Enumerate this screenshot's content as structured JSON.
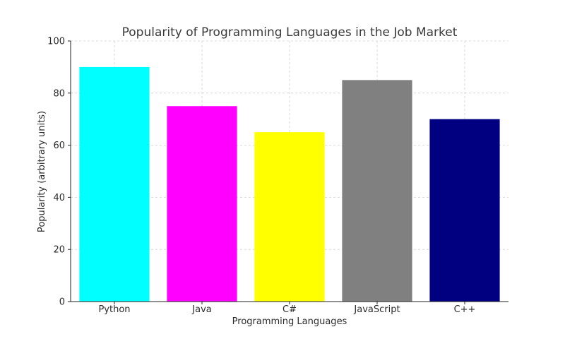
{
  "chart_data": {
    "type": "bar",
    "title": "Popularity of Programming Languages in the Job Market",
    "xlabel": "Programming Languages",
    "ylabel": "Popularity (arbitrary units)",
    "categories": [
      "Python",
      "Java",
      "C#",
      "JavaScript",
      "C++"
    ],
    "values": [
      90,
      75,
      65,
      85,
      70
    ],
    "colors": [
      "#00ffff",
      "#ff00ff",
      "#ffff00",
      "#808080",
      "#000080"
    ],
    "ylim": [
      0,
      100
    ],
    "yticks": [
      0,
      20,
      40,
      60,
      80,
      100
    ],
    "grid": true,
    "legend": "none"
  }
}
